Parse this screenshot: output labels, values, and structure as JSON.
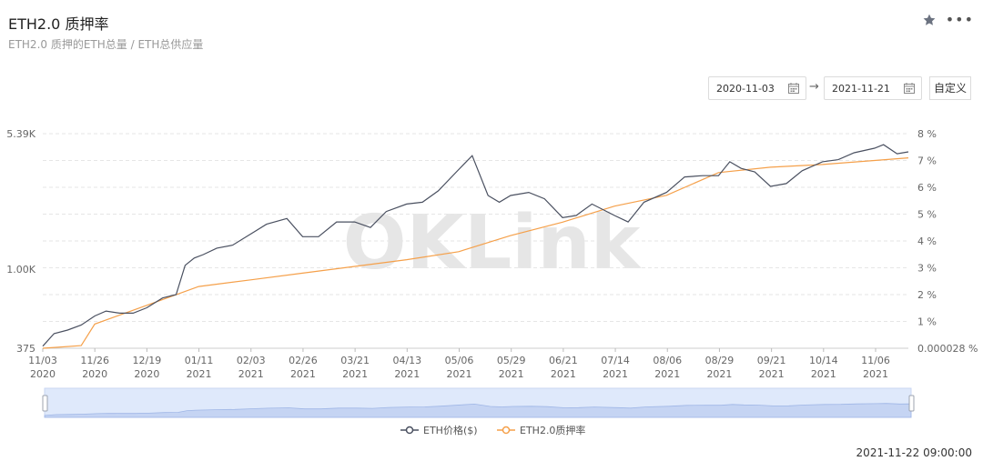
{
  "header": {
    "title": "ETH2.0 质押率",
    "subtitle": "ETH2.0 质押的ETH总量 / ETH总供应量"
  },
  "date_range": {
    "start": "2020-11-03",
    "end": "2021-11-21",
    "custom_label": "自定义"
  },
  "watermark": "OKLink",
  "timestamp": "2021-11-22 09:00:00",
  "colors": {
    "price": "#4a5060",
    "rate": "#f5a04a",
    "slider": "#dfe9fb"
  },
  "icons": {
    "favorite": "star-icon",
    "more": "more-icon",
    "calendar": "calendar-icon"
  },
  "chart_data": {
    "type": "line",
    "x_ticks": [
      [
        "11/03",
        "2020"
      ],
      [
        "11/26",
        "2020"
      ],
      [
        "12/19",
        "2020"
      ],
      [
        "01/11",
        "2021"
      ],
      [
        "02/03",
        "2021"
      ],
      [
        "02/26",
        "2021"
      ],
      [
        "03/21",
        "2021"
      ],
      [
        "04/13",
        "2021"
      ],
      [
        "05/06",
        "2021"
      ],
      [
        "05/29",
        "2021"
      ],
      [
        "06/21",
        "2021"
      ],
      [
        "07/14",
        "2021"
      ],
      [
        "08/06",
        "2021"
      ],
      [
        "08/29",
        "2021"
      ],
      [
        "09/21",
        "2021"
      ],
      [
        "10/14",
        "2021"
      ],
      [
        "11/06",
        "2021"
      ]
    ],
    "y_left_ticks": [
      "5.39K",
      "1.00K",
      "375"
    ],
    "y_left_scale": "log",
    "y_left_range": [
      375,
      5390
    ],
    "y_right_ticks": [
      "8 %",
      "7 %",
      "6 %",
      "5 %",
      "4 %",
      "3 %",
      "2 %",
      "1 %",
      "0.000028 %"
    ],
    "y_right_range": [
      0,
      8
    ],
    "legend": [
      "ETH价格($)",
      "ETH2.0质押率"
    ],
    "legend_position": "bottom",
    "series": [
      {
        "name": "ETH价格($)",
        "axis": "left",
        "dates": [
          "2020-11-03",
          "2020-11-08",
          "2020-11-14",
          "2020-11-20",
          "2020-11-26",
          "2020-12-01",
          "2020-12-07",
          "2020-12-13",
          "2020-12-19",
          "2020-12-26",
          "2021-01-01",
          "2021-01-05",
          "2021-01-09",
          "2021-01-13",
          "2021-01-19",
          "2021-01-26",
          "2021-02-03",
          "2021-02-10",
          "2021-02-19",
          "2021-02-26",
          "2021-03-05",
          "2021-03-13",
          "2021-03-21",
          "2021-03-28",
          "2021-04-04",
          "2021-04-13",
          "2021-04-20",
          "2021-04-27",
          "2021-05-06",
          "2021-05-12",
          "2021-05-19",
          "2021-05-24",
          "2021-05-29",
          "2021-06-06",
          "2021-06-13",
          "2021-06-21",
          "2021-06-27",
          "2021-07-04",
          "2021-07-14",
          "2021-07-20",
          "2021-07-27",
          "2021-08-06",
          "2021-08-14",
          "2021-08-22",
          "2021-08-29",
          "2021-09-03",
          "2021-09-08",
          "2021-09-14",
          "2021-09-21",
          "2021-09-28",
          "2021-10-05",
          "2021-10-14",
          "2021-10-21",
          "2021-10-28",
          "2021-11-06",
          "2021-11-10",
          "2021-11-16",
          "2021-11-21"
        ],
        "values": [
          385,
          450,
          470,
          500,
          560,
          595,
          580,
          580,
          620,
          700,
          730,
          1050,
          1150,
          1200,
          1300,
          1350,
          1550,
          1750,
          1880,
          1500,
          1500,
          1800,
          1800,
          1680,
          2050,
          2250,
          2300,
          2650,
          3450,
          4100,
          2500,
          2300,
          2500,
          2600,
          2400,
          1900,
          1950,
          2250,
          1950,
          1800,
          2300,
          2600,
          3150,
          3200,
          3200,
          3800,
          3500,
          3350,
          2800,
          2900,
          3400,
          3800,
          3900,
          4250,
          4500,
          4700,
          4200,
          4300
        ]
      },
      {
        "name": "ETH2.0质押率",
        "axis": "right",
        "dates": [
          "2020-11-03",
          "2020-11-20",
          "2020-11-26",
          "2020-12-19",
          "2021-01-11",
          "2021-02-03",
          "2021-02-26",
          "2021-03-21",
          "2021-04-13",
          "2021-05-06",
          "2021-05-29",
          "2021-06-21",
          "2021-07-14",
          "2021-08-06",
          "2021-08-29",
          "2021-09-21",
          "2021-10-14",
          "2021-11-06",
          "2021-11-21"
        ],
        "values": [
          2.8e-05,
          0.1,
          0.9,
          1.6,
          2.3,
          2.55,
          2.8,
          3.05,
          3.3,
          3.6,
          4.2,
          4.7,
          5.3,
          5.7,
          6.55,
          6.75,
          6.85,
          7.0,
          7.1
        ]
      }
    ]
  }
}
